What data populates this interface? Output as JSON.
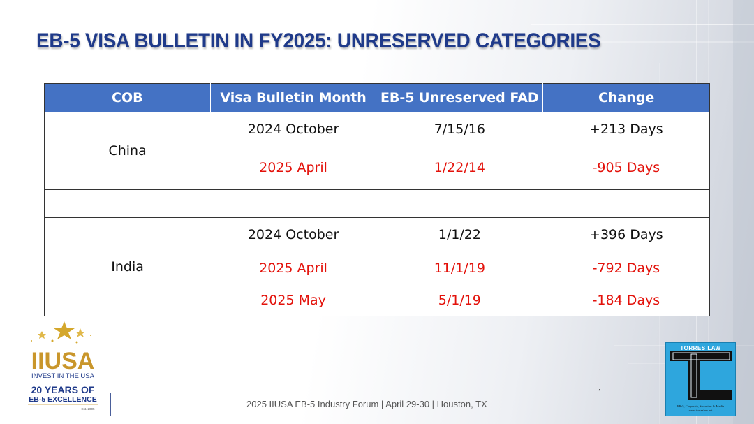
{
  "slide": {
    "title": "EB-5 VISA BULLETIN IN FY2025: UNRESERVED CATEGORIES"
  },
  "table": {
    "headers": [
      "COB",
      "Visa Bulletin Month",
      "EB-5 Unreserved FAD",
      "Change"
    ],
    "china": {
      "country": "China",
      "rows": [
        {
          "month": "2024 October",
          "fad": "7/15/16",
          "change": "+213 Days",
          "highlight": false
        },
        {
          "month": "2025 April",
          "fad": "1/22/14",
          "change": "-905 Days",
          "highlight": true
        }
      ]
    },
    "india": {
      "country": "India",
      "rows": [
        {
          "month": "2024 October",
          "fad": "1/1/22",
          "change": "+396 Days",
          "highlight": false
        },
        {
          "month": "2025 April",
          "fad": "11/1/19",
          "change": "-792 Days",
          "highlight": true
        },
        {
          "month": "2025 May",
          "fad": "5/1/19",
          "change": "-184 Days",
          "highlight": true
        }
      ]
    }
  },
  "logos": {
    "iiusa": {
      "brand": "IIUSA",
      "tagline": "INVEST IN THE USA",
      "years_line1": "20 YEARS OF",
      "years_line2": "EB-5 EXCELLENCE",
      "est": "Est. 2005"
    },
    "torres": {
      "name": "TORRES LAW",
      "subtitle": "EB-5, Corporate, Securities & Media",
      "url": "www.torreslaw.net"
    }
  },
  "footer": {
    "text": "2025 IIUSA EB-5 Industry Forum | April 29-30 | Houston, TX",
    "tick": "’"
  },
  "colors": {
    "title": "#1f3a8a",
    "header_bg": "#4472c4",
    "highlight_red": "#e3120b",
    "torres_bg": "#2ea6dd"
  }
}
